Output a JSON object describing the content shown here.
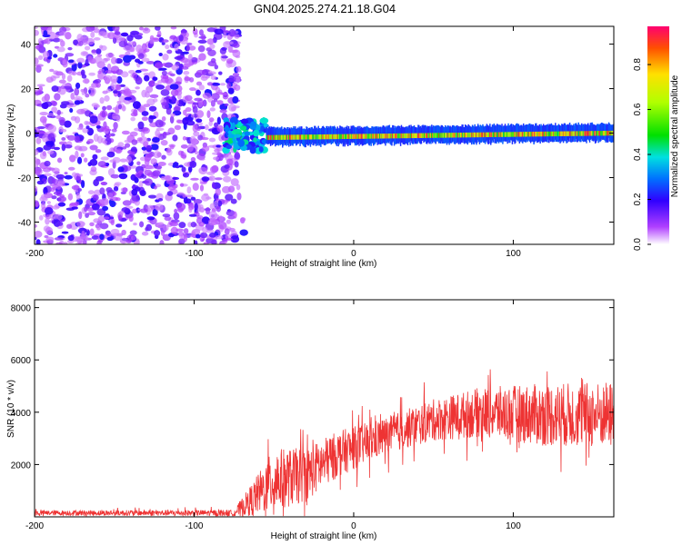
{
  "chart_data": [
    {
      "type": "heatmap",
      "title": "GN04.2025.274.21.18.G04",
      "xlabel": "Height of straight line (km)",
      "ylabel": "Frequency (Hz)",
      "xlim": [
        -200,
        163
      ],
      "ylim": [
        -50,
        48
      ],
      "xticks": [
        -200,
        -100,
        0,
        100
      ],
      "xtick_labels": [
        "-200",
        "-100",
        "0",
        "100"
      ],
      "yticks": [
        -40,
        -20,
        0,
        20,
        40
      ],
      "ytick_labels": [
        "-40",
        "-20",
        "0",
        "20",
        "40"
      ],
      "colorbar": {
        "label": "Normalized spectral amplitude",
        "range": [
          0,
          0.97
        ],
        "ticks": [
          0.0,
          0.2,
          0.4,
          0.6,
          0.8
        ],
        "tick_labels": [
          "0.0",
          "0.2",
          "0.4",
          "0.6",
          "0.8"
        ]
      },
      "regions": [
        {
          "name": "noise",
          "x_range": [
            -200,
            -72
          ],
          "freq_range": [
            -50,
            48
          ],
          "amplitude": [
            0.05,
            0.22
          ]
        },
        {
          "name": "onset-blob",
          "x_range": [
            -80,
            -55
          ],
          "freq_range": [
            -8,
            6
          ],
          "amplitude": [
            0.2,
            0.45
          ]
        },
        {
          "name": "carrier-line",
          "x_range": [
            -55,
            163
          ],
          "freq_center": [
            -2,
            0
          ],
          "freq_halfwidth": 3.5,
          "peak_amplitude": 0.95
        }
      ]
    },
    {
      "type": "line",
      "xlabel": "Height of straight line (km)",
      "ylabel": "SNR (10 * v/v)",
      "xlim": [
        -200,
        163
      ],
      "ylim": [
        0,
        8300
      ],
      "xticks": [
        -200,
        -100,
        0,
        100
      ],
      "xtick_labels": [
        "-200",
        "-100",
        "0",
        "100"
      ],
      "yticks": [
        2000,
        4000,
        6000,
        8000
      ],
      "ytick_labels": [
        "2000",
        "4000",
        "6000",
        "8000"
      ],
      "series": [
        {
          "name": "SNR",
          "color": "#ee3333",
          "envelope": [
            {
              "x": -200,
              "mean": 150,
              "spread": 120
            },
            {
              "x": -75,
              "mean": 150,
              "spread": 150
            },
            {
              "x": -65,
              "mean": 600,
              "spread": 700
            },
            {
              "x": -50,
              "mean": 1400,
              "spread": 1500
            },
            {
              "x": -30,
              "mean": 1600,
              "spread": 1300
            },
            {
              "x": -10,
              "mean": 2400,
              "spread": 1100
            },
            {
              "x": 20,
              "mean": 3100,
              "spread": 900
            },
            {
              "x": 50,
              "mean": 3700,
              "spread": 1000
            },
            {
              "x": 80,
              "mean": 4000,
              "spread": 1200
            },
            {
              "x": 120,
              "mean": 3900,
              "spread": 1500
            },
            {
              "x": 163,
              "mean": 3900,
              "spread": 1600
            }
          ]
        }
      ]
    }
  ]
}
